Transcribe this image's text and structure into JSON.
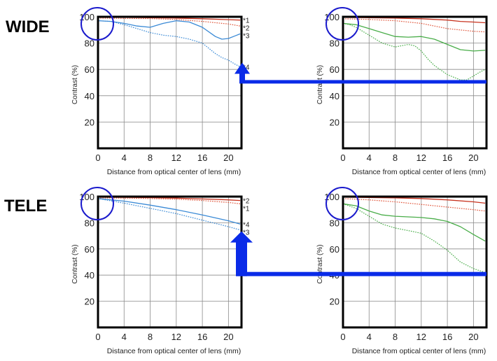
{
  "row_labels": {
    "wide": "WIDE",
    "tele": "TELE"
  },
  "colors": {
    "red_solid": "#c8321e",
    "red_dotted": "#e0553a",
    "blue": "#3a8ad6",
    "green": "#49ad49",
    "arrow": "#0a2be8",
    "circle": "#1a1acc",
    "axis": "#000000",
    "grid": "#8a8a8a"
  },
  "chart_data": [
    {
      "type": "line",
      "group": "wide-left",
      "xlabel": "Distance from optical center of lens (mm)",
      "ylabel": "Contrast (%)",
      "xlim": [
        0,
        22
      ],
      "ylim": [
        0,
        100
      ],
      "xticks": [
        "0",
        "4",
        "8",
        "12",
        "16",
        "20"
      ],
      "yticks": [
        "20",
        "40",
        "60",
        "80",
        "100"
      ],
      "series": [
        {
          "name": "*1",
          "color": "red_solid",
          "style": "solid",
          "x": [
            0,
            4,
            8,
            12,
            16,
            20,
            21.8
          ],
          "y": [
            99.5,
            99.5,
            99.3,
            99,
            98.5,
            97.8,
            97.5
          ]
        },
        {
          "name": "*2",
          "color": "red_dotted",
          "style": "dotted",
          "x": [
            0,
            4,
            8,
            12,
            16,
            20,
            21.8
          ],
          "y": [
            99,
            98.8,
            98.6,
            98,
            96.5,
            94.5,
            93
          ]
        },
        {
          "name": "*3",
          "color": "blue",
          "style": "solid",
          "x": [
            0,
            2,
            4,
            6,
            8,
            10,
            12,
            14,
            16,
            18,
            19,
            20,
            21,
            21.8
          ],
          "y": [
            97,
            96.5,
            95,
            93,
            92,
            95,
            97,
            96,
            92,
            85,
            83,
            83.5,
            85.5,
            87
          ]
        },
        {
          "name": "*4",
          "color": "blue",
          "style": "dotted",
          "x": [
            0,
            2,
            4,
            6,
            8,
            10,
            12,
            14,
            16,
            17,
            18,
            19,
            20,
            21,
            21.8
          ],
          "y": [
            97,
            96.5,
            94,
            91,
            88,
            86,
            85,
            83,
            80,
            76,
            72,
            69,
            67,
            64,
            62
          ]
        }
      ]
    },
    {
      "type": "line",
      "group": "wide-right",
      "xlabel": "Distance from optical center of lens (mm)",
      "ylabel": "Contrast (%)",
      "xlim": [
        0,
        22
      ],
      "ylim": [
        0,
        100
      ],
      "xticks": [
        "0",
        "4",
        "8",
        "12",
        "16",
        "20"
      ],
      "yticks": [
        "20",
        "40",
        "60",
        "80",
        "100"
      ],
      "series": [
        {
          "name": "",
          "color": "red_solid",
          "style": "solid",
          "x": [
            0,
            4,
            8,
            12,
            16,
            18,
            20,
            21.8
          ],
          "y": [
            99.5,
            99.3,
            99,
            98.5,
            97.5,
            96.5,
            96,
            95.5
          ]
        },
        {
          "name": "",
          "color": "red_dotted",
          "style": "dotted",
          "x": [
            0,
            4,
            8,
            12,
            14,
            16,
            18,
            20,
            21.8
          ],
          "y": [
            98.5,
            98,
            97,
            95,
            93,
            91,
            90,
            89,
            88.5
          ]
        },
        {
          "name": "",
          "color": "green",
          "style": "solid",
          "x": [
            0,
            2,
            4,
            6,
            8,
            10,
            12,
            14,
            16,
            18,
            20,
            21.8
          ],
          "y": [
            95,
            94,
            91,
            88,
            85,
            84.5,
            85,
            83,
            79,
            75,
            74,
            74.5
          ]
        },
        {
          "name": "",
          "color": "green",
          "style": "dotted",
          "x": [
            0,
            1,
            2,
            4,
            6,
            8,
            10,
            11,
            12,
            13,
            14,
            16,
            18,
            19,
            20,
            21,
            21.8
          ],
          "y": [
            95,
            94,
            92,
            86,
            80,
            77,
            79,
            78,
            74,
            68,
            63,
            56,
            52,
            52,
            55,
            58,
            60
          ]
        }
      ]
    },
    {
      "type": "line",
      "group": "tele-left",
      "xlabel": "Distance from optical center of lens (mm)",
      "ylabel": "Contrast (%)",
      "xlim": [
        0,
        22
      ],
      "ylim": [
        0,
        100
      ],
      "xticks": [
        "0",
        "4",
        "8",
        "12",
        "16",
        "20"
      ],
      "yticks": [
        "20",
        "40",
        "60",
        "80",
        "100"
      ],
      "series": [
        {
          "name": "*2",
          "color": "red_solid",
          "style": "solid",
          "x": [
            0,
            4,
            8,
            12,
            16,
            20,
            21.8
          ],
          "y": [
            99.5,
            99.4,
            99.2,
            98.8,
            98.2,
            97.5,
            97
          ]
        },
        {
          "name": "*1",
          "color": "red_dotted",
          "style": "dotted",
          "x": [
            0,
            4,
            8,
            12,
            16,
            20,
            21.8
          ],
          "y": [
            99,
            98.8,
            98.5,
            98,
            97,
            95.5,
            94.5
          ]
        },
        {
          "name": "*4",
          "color": "blue",
          "style": "solid",
          "x": [
            0,
            4,
            8,
            12,
            16,
            20,
            21.8
          ],
          "y": [
            98.5,
            96.5,
            93.5,
            90,
            86,
            81.5,
            79
          ]
        },
        {
          "name": "*3",
          "color": "blue",
          "style": "dotted",
          "x": [
            0,
            4,
            8,
            12,
            16,
            20,
            21.8
          ],
          "y": [
            98.5,
            95,
            91,
            87,
            82,
            77,
            74.5
          ]
        }
      ]
    },
    {
      "type": "line",
      "group": "tele-right",
      "xlabel": "Distance from optical center of lens (mm)",
      "ylabel": "Contrast (%)",
      "xlim": [
        0,
        22
      ],
      "ylim": [
        0,
        100
      ],
      "xticks": [
        "0",
        "4",
        "8",
        "12",
        "16",
        "20"
      ],
      "yticks": [
        "20",
        "40",
        "60",
        "80",
        "100"
      ],
      "series": [
        {
          "name": "",
          "color": "red_solid",
          "style": "solid",
          "x": [
            0,
            4,
            8,
            12,
            16,
            20,
            21.8
          ],
          "y": [
            99.5,
            99.3,
            99,
            98.5,
            97.5,
            96,
            95
          ]
        },
        {
          "name": "",
          "color": "red_dotted",
          "style": "dotted",
          "x": [
            0,
            4,
            8,
            12,
            16,
            20,
            21.8
          ],
          "y": [
            98.5,
            97.5,
            96,
            94,
            92,
            90,
            89
          ]
        },
        {
          "name": "",
          "color": "green",
          "style": "solid",
          "x": [
            0,
            2,
            4,
            6,
            8,
            10,
            12,
            14,
            16,
            18,
            20,
            21.8
          ],
          "y": [
            94.5,
            93,
            89,
            86,
            85,
            84.5,
            84,
            83,
            81,
            77,
            71,
            66
          ]
        },
        {
          "name": "",
          "color": "green",
          "style": "dotted",
          "x": [
            0,
            2,
            4,
            6,
            8,
            10,
            12,
            14,
            16,
            18,
            20,
            21.8
          ],
          "y": [
            94.5,
            91,
            85,
            79,
            76,
            74,
            72,
            66,
            59,
            50,
            45,
            42
          ]
        }
      ]
    }
  ]
}
